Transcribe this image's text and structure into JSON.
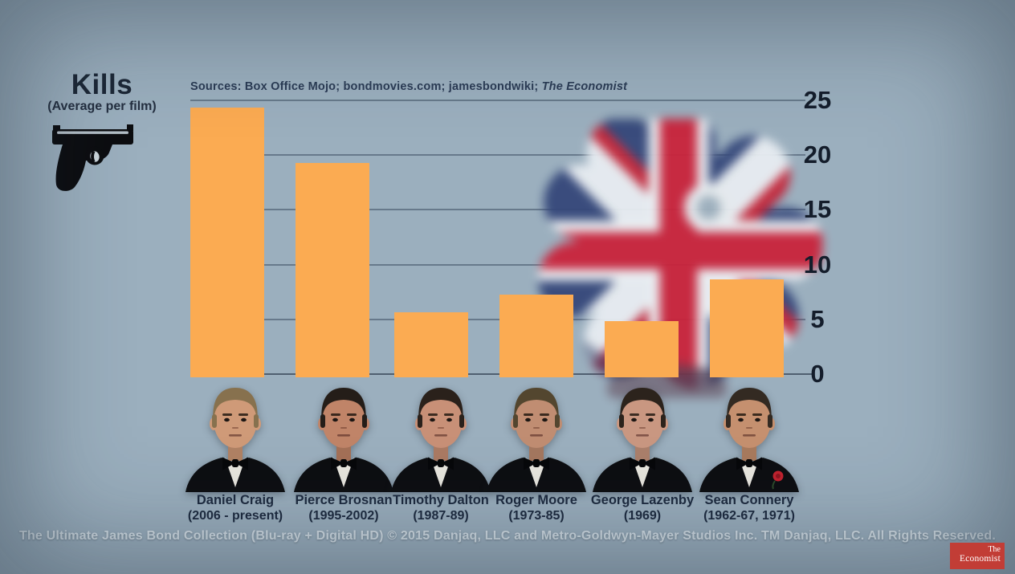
{
  "header": {
    "title": "Kills",
    "subtitle": "(Average per film)",
    "icon": "pistol-icon"
  },
  "sources": {
    "prefix": "Sources: Box Office Mojo; bondmovies.com; jamesbondwiki; ",
    "italic": "The Economist"
  },
  "chart_data": {
    "type": "bar",
    "title": "Kills (Average per film)",
    "categories": [
      "Daniel Craig",
      "Pierce Brosnan",
      "Timothy Dalton",
      "Roger Moore",
      "George Lazenby",
      "Sean Connery"
    ],
    "values": [
      24.3,
      19.2,
      5.6,
      7.2,
      4.8,
      8.6
    ],
    "ylim": [
      0,
      25
    ],
    "yticks": [
      25,
      20,
      15,
      10,
      5,
      0
    ],
    "ylabel": "Kills (average per film)",
    "xlabel": "",
    "grid": true,
    "y_axis_side": "right",
    "legend": "none",
    "bar_color": "#fbab52",
    "background_motif": "union-jack-parachute"
  },
  "actors": [
    {
      "name": "Daniel Craig",
      "years": "(2006 - present)",
      "hair": "#87714e",
      "skin": "#cf9a78",
      "carnation": false
    },
    {
      "name": "Pierce Brosnan",
      "years": "(1995-2002)",
      "hair": "#241d18",
      "skin": "#c08468",
      "carnation": false
    },
    {
      "name": "Timothy Dalton",
      "years": "(1987-89)",
      "hair": "#2a211b",
      "skin": "#c89077",
      "carnation": false
    },
    {
      "name": "Roger Moore",
      "years": "(1973-85)",
      "hair": "#53462f",
      "skin": "#c08d72",
      "carnation": false
    },
    {
      "name": "George Lazenby",
      "years": "(1969)",
      "hair": "#2c231c",
      "skin": "#c99781",
      "carnation": false
    },
    {
      "name": "Sean Connery",
      "years": "(1962-67, 1971)",
      "hair": "#332a22",
      "skin": "#c5906f",
      "carnation": true
    }
  ],
  "footer": {
    "copyright": "The Ultimate James Bond Collection (Blu-ray + Digital HD) © 2015 Danjaq, LLC and Metro-Goldwyn-Mayer Studios Inc. TM Danjaq, LLC. All Rights Reserved."
  },
  "branding": {
    "logo_line1": "The",
    "logo_line2": "Economist",
    "logo_bg": "#c23d36"
  }
}
